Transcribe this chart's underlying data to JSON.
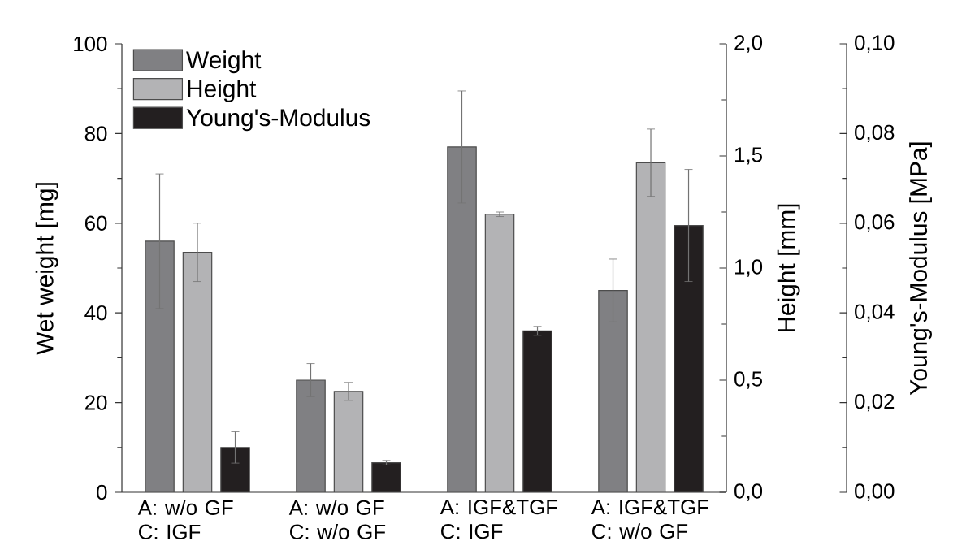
{
  "chart_data": {
    "type": "bar",
    "categories": [
      "A: w/o GF C: IGF",
      "A: w/o GF C: w/o GF",
      "A: IGF&TGF C: IGF",
      "A: IGF&TGF C: w/o GF"
    ],
    "series": [
      {
        "name": "Weight",
        "color": "#808083",
        "values": [
          56,
          25,
          77,
          45
        ],
        "errors": [
          15,
          3.7,
          12.5,
          7
        ]
      },
      {
        "name": "Height",
        "color": "#b3b3b5",
        "axis": "y2",
        "values": [
          1.07,
          0.45,
          1.24,
          1.47
        ],
        "errors": [
          0.13,
          0.04,
          0.01,
          0.15
        ]
      },
      {
        "name": "Young's-Modulus",
        "color": "#231f20",
        "axis": "y3",
        "values": [
          0.01,
          0.0066,
          0.036,
          0.0595
        ],
        "errors": [
          0.0035,
          0.0005,
          0.001,
          0.0125
        ]
      }
    ],
    "ylabel": "Wet weight [mg]",
    "y2label": "Height [mm]",
    "y3label": "Young's-Modulus [MPa]",
    "ylim": [
      0,
      100
    ],
    "yticks": [
      0,
      20,
      40,
      60,
      80,
      100
    ],
    "y2lim": [
      0,
      2
    ],
    "y2ticks": [
      {
        "value": 0,
        "label": "0,0"
      },
      {
        "value": 0.5,
        "label": "0,5"
      },
      {
        "value": 1,
        "label": "1,0"
      },
      {
        "value": 1.5,
        "label": "1,5"
      },
      {
        "value": 2,
        "label": "2,0"
      }
    ],
    "y3lim": [
      0,
      0.1
    ],
    "y3ticks": [
      {
        "value": 0,
        "label": "0,00"
      },
      {
        "value": 0.02,
        "label": "0,02"
      },
      {
        "value": 0.04,
        "label": "0,04"
      },
      {
        "value": 0.06,
        "label": "0,06"
      },
      {
        "value": 0.08,
        "label": "0,08"
      },
      {
        "value": 0.1,
        "label": "0,10"
      }
    ],
    "legend": "top left"
  }
}
